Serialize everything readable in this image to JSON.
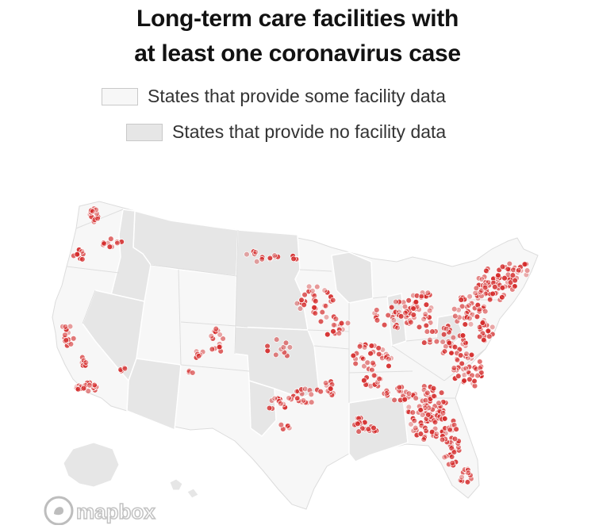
{
  "title": {
    "line1": "Long-term care facilities with",
    "line2": "at least one coronavirus case"
  },
  "legend": {
    "some": {
      "label": "States that provide some facility data",
      "color": "#f7f7f7"
    },
    "none": {
      "label": "States that provide no facility data",
      "color": "#e6e6e6"
    }
  },
  "map": {
    "attribution": "mapbox",
    "dot_fill": "#d42a2a",
    "dot_stroke": "#ffffff",
    "some_data_color": "#f7f7f7",
    "no_data_color": "#e0e0e0",
    "border_color": "#ffffff"
  }
}
